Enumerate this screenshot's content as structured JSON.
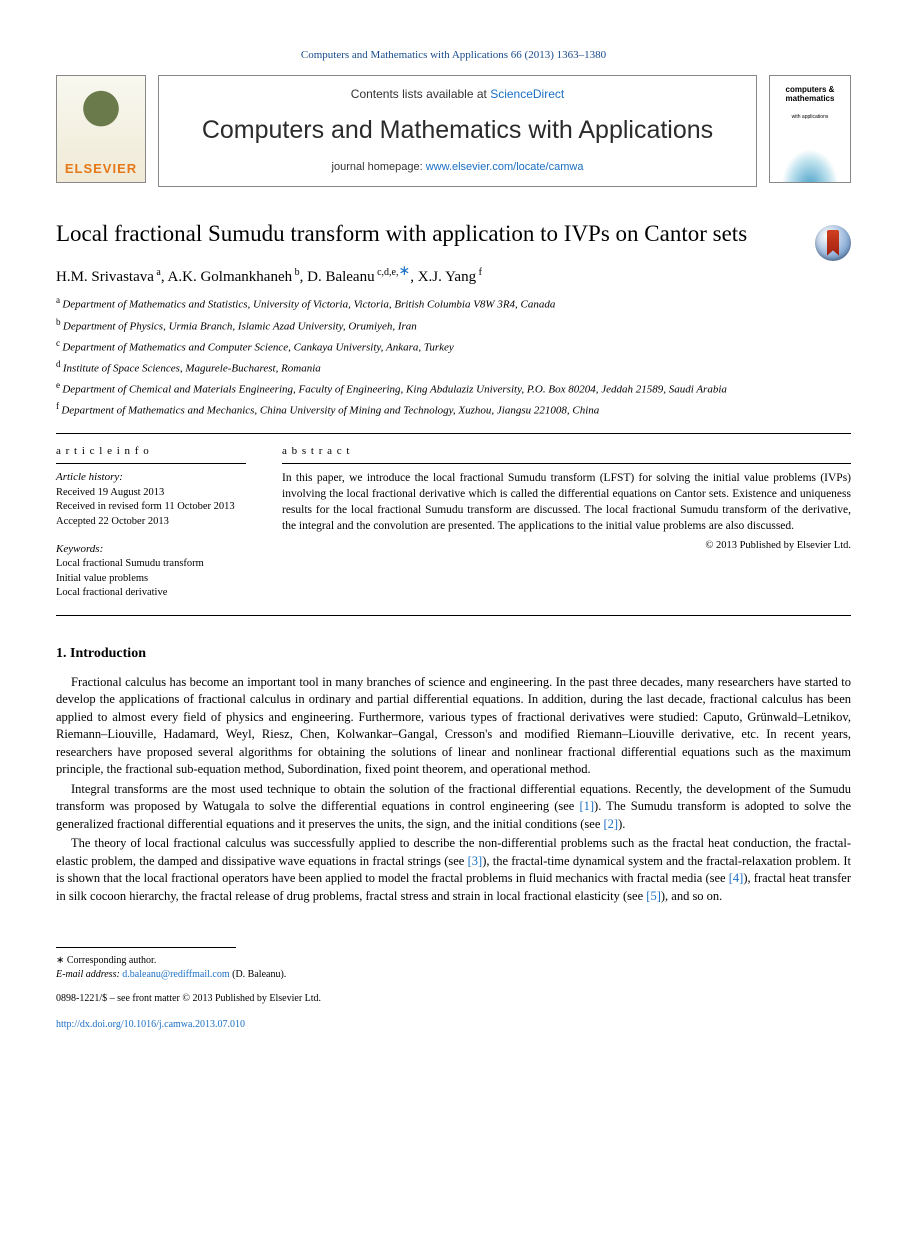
{
  "citation": {
    "journal": "Computers and Mathematics with Applications",
    "vol_issue_pages_year": "66 (2013) 1363–1380"
  },
  "header": {
    "publisher": "ELSEVIER",
    "lists_prefix": "Contents lists available at ",
    "lists_link": "ScienceDirect",
    "journal_title": "Computers and Mathematics with Applications",
    "homepage_prefix": "journal homepage: ",
    "homepage_url": "www.elsevier.com/locate/camwa",
    "cover_title": "computers & mathematics",
    "cover_sub": "with applications"
  },
  "article": {
    "title": "Local fractional Sumudu transform with application to IVPs on Cantor sets",
    "authors": [
      {
        "name": "H.M. Srivastava",
        "affref": "a"
      },
      {
        "name": "A.K. Golmankhaneh",
        "affref": "b"
      },
      {
        "name": "D. Baleanu",
        "affref": "c,d,e,",
        "corresponding": true
      },
      {
        "name": "X.J. Yang",
        "affref": "f"
      }
    ],
    "affiliations": [
      {
        "label": "a",
        "text": "Department of Mathematics and Statistics, University of Victoria, Victoria, British Columbia V8W 3R4, Canada"
      },
      {
        "label": "b",
        "text": "Department of Physics, Urmia Branch, Islamic Azad University, Orumiyeh, Iran"
      },
      {
        "label": "c",
        "text": "Department of Mathematics and Computer Science, Cankaya University, Ankara, Turkey"
      },
      {
        "label": "d",
        "text": "Institute of Space Sciences, Magurele-Bucharest, Romania"
      },
      {
        "label": "e",
        "text": "Department of Chemical and Materials Engineering, Faculty of Engineering, King Abdulaziz University, P.O. Box 80204, Jeddah 21589, Saudi Arabia"
      },
      {
        "label": "f",
        "text": "Department of Mathematics and Mechanics, China University of Mining and Technology, Xuzhou, Jiangsu 221008, China"
      }
    ]
  },
  "meta": {
    "info_heading": "a r t i c l e   i n f o",
    "history_heading": "Article history:",
    "history": [
      "Received 19 August 2013",
      "Received in revised form 11 October 2013",
      "Accepted 22 October 2013"
    ],
    "keywords_heading": "Keywords:",
    "keywords": [
      "Local fractional Sumudu transform",
      "Initial value problems",
      "Local fractional derivative"
    ],
    "abstract_heading": "a b s t r a c t",
    "abstract": "In this paper, we introduce the local fractional Sumudu transform (LFST) for solving the initial value problems (IVPs) involving the local fractional derivative which is called the differential equations on Cantor sets. Existence and uniqueness results for the local fractional Sumudu transform are discussed. The local fractional Sumudu transform of the derivative, the integral and the convolution are presented. The applications to the initial value problems are also discussed.",
    "copyright": "© 2013 Published by Elsevier Ltd."
  },
  "intro": {
    "heading": "1. Introduction",
    "paragraphs": [
      "Fractional calculus has become an important tool in many branches of science and engineering. In the past three decades, many researchers have started to develop the applications of fractional calculus in ordinary and partial differential equations. In addition, during the last decade, fractional calculus has been applied to almost every field of physics and engineering. Furthermore, various types of fractional derivatives were studied: Caputo, Grünwald–Letnikov, Riemann–Liouville, Hadamard, Weyl, Riesz, Chen, Kolwankar–Gangal, Cresson's and modified Riemann–Liouville derivative, etc. In recent years, researchers have proposed several algorithms for obtaining the solutions of linear and nonlinear fractional differential equations such as the maximum principle, the fractional sub-equation method, Subordination, fixed point theorem, and operational method.",
      "Integral transforms are the most used technique to obtain the solution of the fractional differential equations. Recently, the development of the Sumudu transform was proposed by Watugala to solve the differential equations in control engineering (see [cite]). The Sumudu transform is adopted to solve the generalized fractional differential equations and it preserves the units, the sign, and the initial conditions (see [cite]).",
      "The theory of local fractional calculus was successfully applied to describe the non-differential problems such as the fractal heat conduction, the fractal-elastic problem, the damped and dissipative wave equations in fractal strings (see [cite]), the fractal-time dynamical system and the fractal-relaxation problem. It is shown that the local fractional operators have been applied to model the fractal problems in fluid mechanics with fractal media (see [cite]), fractal heat transfer in silk cocoon hierarchy, the fractal release of drug problems, fractal stress and strain in local fractional elasticity (see [cite]), and so on."
    ],
    "ref_links": [
      "1",
      "2",
      "3",
      "4",
      "5"
    ]
  },
  "footer": {
    "corresponding_label": "∗ Corresponding author.",
    "email_label": "E-mail address:",
    "email": "d.baleanu@rediffmail.com",
    "email_person": "(D. Baleanu).",
    "issn_line": "0898-1221/$ – see front matter © 2013 Published by Elsevier Ltd.",
    "doi": "http://dx.doi.org/10.1016/j.camwa.2013.07.010"
  },
  "colors": {
    "link": "#1a6fc4",
    "elsevier": "#e67817"
  }
}
